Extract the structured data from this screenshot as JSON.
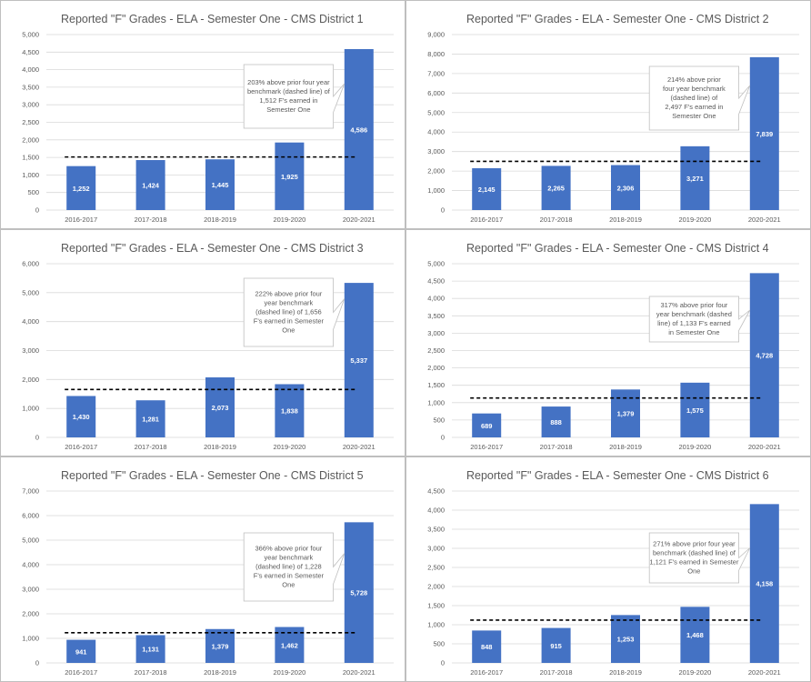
{
  "chart_data": [
    {
      "type": "bar",
      "title": "Reported \"F\" Grades - ELA  - Semester One - CMS District 1",
      "categories": [
        "2016-2017",
        "2017-2018",
        "2018-2019",
        "2019-2020",
        "2020-2021"
      ],
      "values": [
        1252,
        1424,
        1445,
        1925,
        4586
      ],
      "value_labels": [
        "1,252",
        "1,424",
        "1,445",
        "1,925",
        "4,586"
      ],
      "ylim": [
        0,
        5000
      ],
      "ystep": 500,
      "yticks": [
        "0",
        "500",
        "1,000",
        "1,500",
        "2,000",
        "2,500",
        "3,000",
        "3,500",
        "4,000",
        "4,500",
        "5,000"
      ],
      "benchmark": 1512,
      "annotation": [
        "203% above prior four year",
        "benchmark (dashed line) of",
        "1,512 F's earned in",
        "Semester One"
      ]
    },
    {
      "type": "bar",
      "title": "Reported \"F\" Grades - ELA - Semester One - CMS District 2",
      "categories": [
        "2016-2017",
        "2017-2018",
        "2018-2019",
        "2019-2020",
        "2020-2021"
      ],
      "values": [
        2145,
        2265,
        2306,
        3271,
        7839
      ],
      "value_labels": [
        "2,145",
        "2,265",
        "2,306",
        "3,271",
        "7,839"
      ],
      "ylim": [
        0,
        9000
      ],
      "ystep": 1000,
      "yticks": [
        "0",
        "1,000",
        "2,000",
        "3,000",
        "4,000",
        "5,000",
        "6,000",
        "7,000",
        "8,000",
        "9,000"
      ],
      "benchmark": 2497,
      "annotation": [
        "214% above prior",
        "four year benchmark",
        "(dashed line) of",
        "2,497 F's earned in",
        "Semester One"
      ]
    },
    {
      "type": "bar",
      "title": "Reported \"F\" Grades - ELA - Semester One - CMS District 3",
      "categories": [
        "2016-2017",
        "2017-2018",
        "2018-2019",
        "2019-2020",
        "2020-2021"
      ],
      "values": [
        1430,
        1281,
        2073,
        1838,
        5337
      ],
      "value_labels": [
        "1,430",
        "1,281",
        "2,073",
        "1,838",
        "5,337"
      ],
      "ylim": [
        0,
        6000
      ],
      "ystep": 1000,
      "yticks": [
        "0",
        "1,000",
        "2,000",
        "3,000",
        "4,000",
        "5,000",
        "6,000"
      ],
      "benchmark": 1656,
      "annotation": [
        "222% above prior four",
        "year benchmark",
        "(dashed line) of 1,656",
        "F's earned in Semester",
        "One"
      ]
    },
    {
      "type": "bar",
      "title": "Reported \"F\" Grades - ELA - Semester One - CMS District 4",
      "categories": [
        "2016-2017",
        "2017-2018",
        "2018-2019",
        "2019-2020",
        "2020-2021"
      ],
      "values": [
        689,
        888,
        1379,
        1575,
        4728
      ],
      "value_labels": [
        "689",
        "888",
        "1,379",
        "1,575",
        "4,728"
      ],
      "ylim": [
        0,
        5000
      ],
      "ystep": 500,
      "yticks": [
        "0",
        "500",
        "1,000",
        "1,500",
        "2,000",
        "2,500",
        "3,000",
        "3,500",
        "4,000",
        "4,500",
        "5,000"
      ],
      "benchmark": 1133,
      "annotation": [
        "317% above prior four",
        "year benchmark (dashed",
        "line) of 1,133 F's earned",
        "in Semester One"
      ]
    },
    {
      "type": "bar",
      "title": "Reported \"F\" Grades - ELA - Semester One - CMS District 5",
      "categories": [
        "2016-2017",
        "2017-2018",
        "2018-2019",
        "2019-2020",
        "2020-2021"
      ],
      "values": [
        941,
        1131,
        1379,
        1462,
        5728
      ],
      "value_labels": [
        "941",
        "1,131",
        "1,379",
        "1,462",
        "5,728"
      ],
      "ylim": [
        0,
        7000
      ],
      "ystep": 1000,
      "yticks": [
        "0",
        "1,000",
        "2,000",
        "3,000",
        "4,000",
        "5,000",
        "6,000",
        "7,000"
      ],
      "benchmark": 1228,
      "annotation": [
        "366% above prior four",
        "year benchmark",
        "(dashed line) of 1,228",
        "F's earned in Semester",
        "One"
      ]
    },
    {
      "type": "bar",
      "title": "Reported \"F\" Grades - ELA - Semester One - CMS District 6",
      "categories": [
        "2016-2017",
        "2017-2018",
        "2018-2019",
        "2019-2020",
        "2020-2021"
      ],
      "values": [
        848,
        915,
        1253,
        1468,
        4158
      ],
      "value_labels": [
        "848",
        "915",
        "1,253",
        "1,468",
        "4,158"
      ],
      "ylim": [
        0,
        4500
      ],
      "ystep": 500,
      "yticks": [
        "0",
        "500",
        "1,000",
        "1,500",
        "2,000",
        "2,500",
        "3,000",
        "3,500",
        "4,000",
        "4,500"
      ],
      "benchmark": 1121,
      "annotation": [
        "271% above prior four year",
        "benchmark (dashed line) of",
        "1,121 F's earned in Semester",
        "One"
      ]
    }
  ],
  "colors": {
    "bar": "#4472c4",
    "grid": "#d9d9d9",
    "benchmark": "#000000"
  }
}
